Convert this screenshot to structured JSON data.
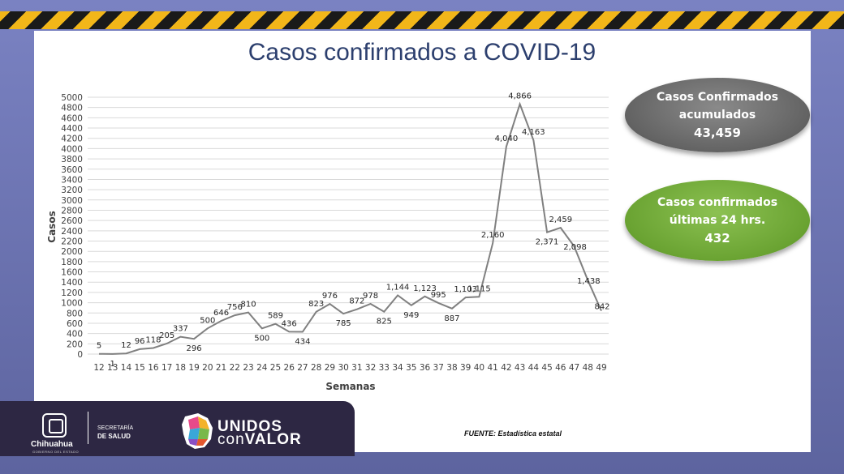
{
  "title": "Casos confirmados a COVID-19",
  "chart_data": {
    "type": "line",
    "title": "Casos confirmados a COVID-19",
    "xlabel": "Semanas",
    "ylabel": "Casos",
    "ylim": [
      0,
      5000
    ],
    "yticks": [
      0,
      200,
      400,
      600,
      800,
      1000,
      1200,
      1400,
      1600,
      1800,
      2000,
      2200,
      2400,
      2600,
      2800,
      3000,
      3200,
      3400,
      3600,
      3800,
      4000,
      4200,
      4400,
      4600,
      4800,
      5000
    ],
    "grid": true,
    "color": "#808080",
    "x": [
      "12",
      "13",
      "14",
      "15",
      "16",
      "17",
      "18",
      "19",
      "20",
      "21",
      "22",
      "23",
      "24",
      "25",
      "26",
      "27",
      "28",
      "29",
      "30",
      "31",
      "32",
      "33",
      "34",
      "35",
      "36",
      "37",
      "38",
      "39",
      "40",
      "41",
      "42",
      "43",
      "44",
      "45",
      "46",
      "47",
      "48",
      "49"
    ],
    "values": [
      5,
      1,
      12,
      96,
      118,
      205,
      337,
      296,
      500,
      646,
      756,
      810,
      500,
      589,
      436,
      434,
      823,
      976,
      785,
      872,
      978,
      825,
      1144,
      949,
      1123,
      995,
      887,
      1103,
      1115,
      2160,
      4040,
      4866,
      4163,
      2371,
      2459,
      2098,
      1438,
      842
    ],
    "labels": [
      "5",
      "1",
      "12",
      "96",
      "118",
      "205",
      "337",
      "296",
      "500",
      "646",
      "756",
      "810",
      "500",
      "589",
      "436",
      "434",
      "823",
      "976",
      "785",
      "872",
      "978",
      "825",
      "1,144",
      "949",
      "1,123",
      "995",
      "887",
      "1,103",
      "1,115",
      "2,160",
      "4,040",
      "4,866",
      "4,163",
      "2,371",
      "2,459",
      "2,098",
      "1,438",
      "842"
    ]
  },
  "bubbles": {
    "accumulated": {
      "line1": "Casos Confirmados",
      "line2": "acumulados",
      "value": "43,459",
      "color": "#6e6e6e"
    },
    "last24": {
      "line1": "Casos confirmados",
      "line2": "últimas 24 hrs.",
      "value": "432",
      "color": "#74ad39"
    }
  },
  "footer": {
    "state": "Chihuahua",
    "state_sub": "GOBIERNO DEL ESTADO",
    "secretaria_line1": "SECRETARÍA",
    "secretaria_line2": "DE SALUD",
    "unidos": "UNIDOS",
    "con": "con",
    "valor": "VALOR",
    "source": "FUENTE: Estadística estatal"
  }
}
